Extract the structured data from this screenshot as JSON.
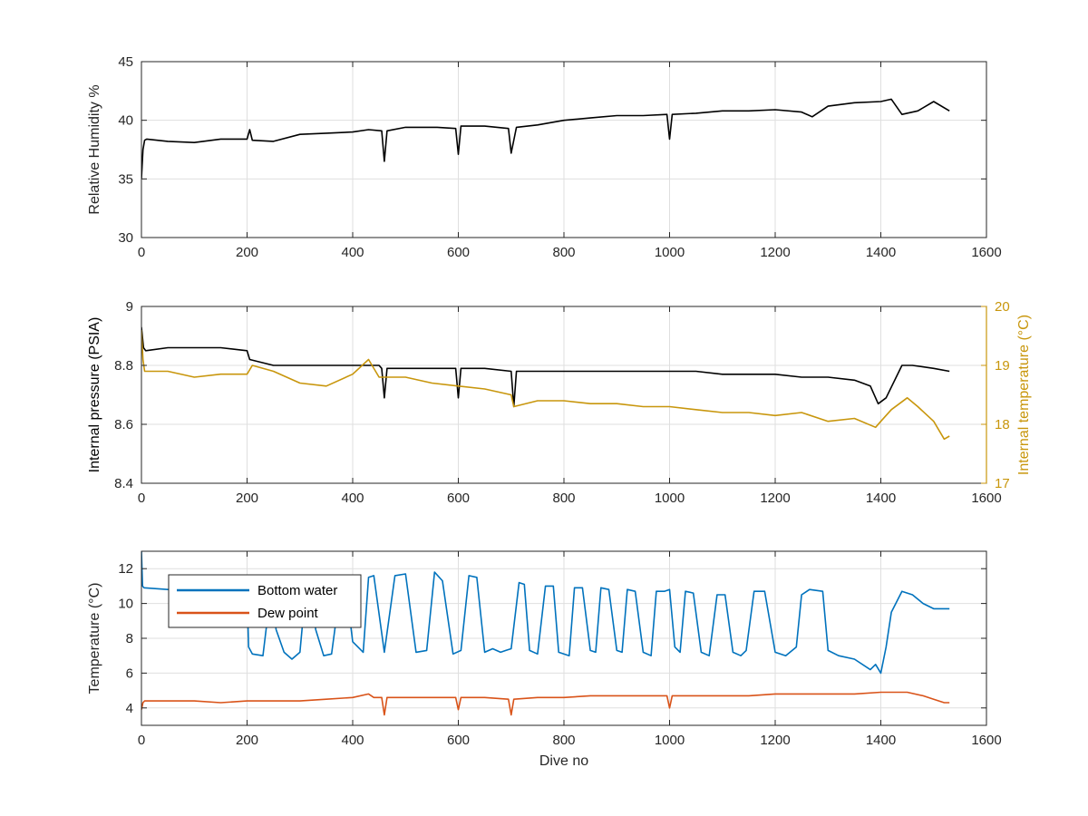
{
  "colors": {
    "black": "#000000",
    "gold": "#C8960C",
    "blue": "#0072BD",
    "orange": "#D95319",
    "grid": "#DFDFDF",
    "axis": "#262626"
  },
  "chart_data": [
    {
      "type": "line",
      "xlabel": "",
      "ylabel": "Relative Humidity %",
      "xlim": [
        0,
        1600
      ],
      "ylim": [
        30,
        45
      ],
      "xticks": [
        0,
        200,
        400,
        600,
        800,
        1000,
        1200,
        1400,
        1600
      ],
      "yticks": [
        30,
        35,
        40,
        45
      ],
      "grid": true,
      "series": [
        {
          "color": "black",
          "x": [
            0,
            3,
            6,
            10,
            50,
            100,
            150,
            200,
            205,
            210,
            250,
            300,
            350,
            400,
            430,
            455,
            460,
            465,
            500,
            560,
            595,
            600,
            605,
            650,
            695,
            700,
            710,
            750,
            800,
            850,
            900,
            950,
            995,
            1000,
            1005,
            1050,
            1100,
            1150,
            1200,
            1250,
            1270,
            1300,
            1350,
            1400,
            1420,
            1440,
            1470,
            1500,
            1530
          ],
          "y": [
            35,
            37.5,
            38.3,
            38.4,
            38.2,
            38.1,
            38.4,
            38.4,
            39.2,
            38.3,
            38.2,
            38.8,
            38.9,
            39.0,
            39.2,
            39.1,
            36.5,
            39.1,
            39.4,
            39.4,
            39.3,
            37.1,
            39.5,
            39.5,
            39.3,
            37.2,
            39.4,
            39.6,
            40.0,
            40.2,
            40.4,
            40.4,
            40.5,
            38.4,
            40.5,
            40.6,
            40.8,
            40.8,
            40.9,
            40.7,
            40.3,
            41.2,
            41.5,
            41.6,
            41.8,
            40.5,
            40.8,
            41.6,
            40.8
          ]
        }
      ]
    },
    {
      "type": "line",
      "xlabel": "",
      "ylabel": "Internal pressure (PSIA)",
      "y2label": "Internal temperature (°C)",
      "xlim": [
        0,
        1600
      ],
      "ylim": [
        8.4,
        9.0
      ],
      "y2lim": [
        17,
        20
      ],
      "xticks": [
        0,
        200,
        400,
        600,
        800,
        1000,
        1200,
        1400,
        1600
      ],
      "yticks": [
        8.4,
        8.6,
        8.8,
        9.0
      ],
      "ytick_labels": [
        "8.4",
        "8.6",
        "8.8",
        "9"
      ],
      "y2ticks": [
        17,
        18,
        19,
        20
      ],
      "grid": true,
      "series": [
        {
          "color": "black",
          "axis": "left",
          "x": [
            0,
            4,
            8,
            50,
            100,
            150,
            200,
            205,
            250,
            300,
            350,
            400,
            450,
            455,
            460,
            465,
            500,
            550,
            595,
            600,
            605,
            650,
            700,
            705,
            710,
            750,
            800,
            850,
            900,
            950,
            1000,
            1050,
            1100,
            1150,
            1200,
            1250,
            1300,
            1350,
            1380,
            1395,
            1410,
            1440,
            1460,
            1500,
            1530
          ],
          "y": [
            8.93,
            8.86,
            8.85,
            8.86,
            8.86,
            8.86,
            8.85,
            8.82,
            8.8,
            8.8,
            8.8,
            8.8,
            8.8,
            8.79,
            8.69,
            8.79,
            8.79,
            8.79,
            8.79,
            8.69,
            8.79,
            8.79,
            8.78,
            8.66,
            8.78,
            8.78,
            8.78,
            8.78,
            8.78,
            8.78,
            8.78,
            8.78,
            8.77,
            8.77,
            8.77,
            8.76,
            8.76,
            8.75,
            8.73,
            8.67,
            8.69,
            8.8,
            8.8,
            8.79,
            8.78
          ]
        },
        {
          "color": "gold",
          "axis": "right",
          "x": [
            0,
            3,
            6,
            50,
            100,
            150,
            200,
            210,
            250,
            300,
            350,
            400,
            430,
            450,
            500,
            550,
            600,
            650,
            700,
            705,
            750,
            800,
            850,
            900,
            950,
            1000,
            1050,
            1100,
            1150,
            1200,
            1250,
            1300,
            1350,
            1390,
            1400,
            1420,
            1450,
            1470,
            1500,
            1520,
            1530
          ],
          "y": [
            19.6,
            19.1,
            18.9,
            18.9,
            18.8,
            18.85,
            18.85,
            19.0,
            18.9,
            18.7,
            18.65,
            18.85,
            19.1,
            18.8,
            18.8,
            18.7,
            18.65,
            18.6,
            18.5,
            18.3,
            18.4,
            18.4,
            18.35,
            18.35,
            18.3,
            18.3,
            18.25,
            18.2,
            18.2,
            18.15,
            18.2,
            18.05,
            18.1,
            17.95,
            18.05,
            18.25,
            18.45,
            18.3,
            18.05,
            17.75,
            17.8
          ]
        }
      ]
    },
    {
      "type": "line",
      "xlabel": "Dive no",
      "ylabel": "Temperature (°C)",
      "xlim": [
        0,
        1600
      ],
      "ylim": [
        3,
        13
      ],
      "xticks": [
        0,
        200,
        400,
        600,
        800,
        1000,
        1200,
        1400,
        1600
      ],
      "yticks": [
        4,
        6,
        8,
        10,
        12
      ],
      "grid": true,
      "legend": "top-left",
      "series": [
        {
          "name": "Bottom water",
          "color": "blue",
          "x": [
            0,
            2,
            5,
            50,
            100,
            150,
            200,
            203,
            210,
            230,
            240,
            245,
            255,
            270,
            285,
            300,
            310,
            320,
            330,
            345,
            360,
            375,
            385,
            400,
            420,
            430,
            440,
            460,
            480,
            500,
            520,
            540,
            555,
            570,
            590,
            605,
            620,
            635,
            650,
            665,
            680,
            690,
            700,
            715,
            725,
            735,
            750,
            765,
            780,
            790,
            810,
            820,
            835,
            850,
            860,
            870,
            885,
            900,
            910,
            920,
            935,
            950,
            965,
            975,
            990,
            1000,
            1010,
            1020,
            1030,
            1045,
            1060,
            1075,
            1090,
            1105,
            1120,
            1135,
            1145,
            1160,
            1180,
            1200,
            1220,
            1240,
            1250,
            1265,
            1290,
            1300,
            1320,
            1350,
            1380,
            1390,
            1400,
            1410,
            1420,
            1440,
            1460,
            1480,
            1500,
            1530
          ],
          "y": [
            13,
            11,
            10.9,
            10.8,
            10.7,
            10.7,
            10.7,
            7.5,
            7.1,
            7.0,
            9.5,
            11.0,
            8.5,
            7.2,
            6.8,
            7.2,
            10.5,
            11.5,
            8.5,
            7.0,
            7.1,
            10.5,
            11.5,
            7.8,
            7.2,
            11.5,
            11.6,
            7.2,
            11.6,
            11.7,
            7.2,
            7.3,
            11.8,
            11.3,
            7.1,
            7.3,
            11.6,
            11.5,
            7.2,
            7.4,
            7.2,
            7.3,
            7.4,
            11.2,
            11.1,
            7.3,
            7.1,
            11.0,
            11.0,
            7.2,
            7.0,
            10.9,
            10.9,
            7.3,
            7.2,
            10.9,
            10.8,
            7.3,
            7.2,
            10.8,
            10.7,
            7.2,
            7.0,
            10.7,
            10.7,
            10.8,
            7.5,
            7.2,
            10.7,
            10.6,
            7.2,
            7.0,
            10.5,
            10.5,
            7.2,
            7.0,
            7.3,
            10.7,
            10.7,
            7.2,
            7.0,
            7.5,
            10.5,
            10.8,
            10.7,
            7.3,
            7.0,
            6.8,
            6.2,
            6.5,
            6.0,
            7.5,
            9.5,
            10.7,
            10.5,
            10.0,
            9.7,
            9.7
          ]
        },
        {
          "name": "Dew point",
          "color": "orange",
          "x": [
            0,
            3,
            6,
            50,
            100,
            150,
            200,
            250,
            300,
            350,
            400,
            430,
            440,
            455,
            460,
            465,
            500,
            550,
            595,
            600,
            605,
            650,
            695,
            700,
            705,
            750,
            800,
            850,
            900,
            950,
            995,
            1000,
            1005,
            1050,
            1100,
            1150,
            1200,
            1250,
            1300,
            1350,
            1400,
            1420,
            1450,
            1480,
            1500,
            1520,
            1530
          ],
          "y": [
            3.9,
            4.3,
            4.4,
            4.4,
            4.4,
            4.3,
            4.4,
            4.4,
            4.4,
            4.5,
            4.6,
            4.8,
            4.6,
            4.6,
            3.6,
            4.6,
            4.6,
            4.6,
            4.6,
            3.9,
            4.6,
            4.6,
            4.5,
            3.6,
            4.5,
            4.6,
            4.6,
            4.7,
            4.7,
            4.7,
            4.7,
            4.0,
            4.7,
            4.7,
            4.7,
            4.7,
            4.8,
            4.8,
            4.8,
            4.8,
            4.9,
            4.9,
            4.9,
            4.7,
            4.5,
            4.3,
            4.3
          ]
        }
      ]
    }
  ]
}
